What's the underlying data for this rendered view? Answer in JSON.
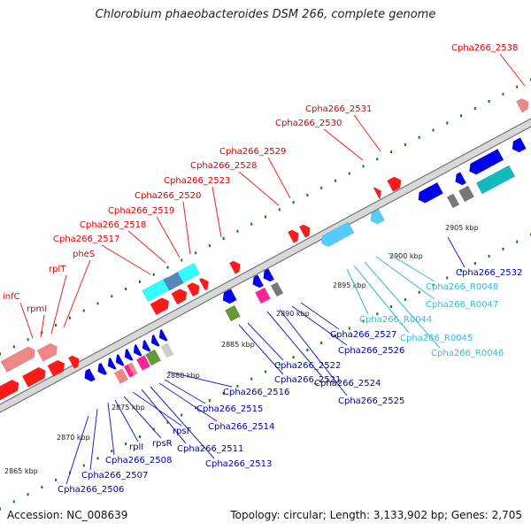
{
  "title": "Chlorobium phaeobacteroides DSM 266, complete genome",
  "footer": {
    "accession": "Accession: NC_008639",
    "summary": "Topology: circular; Length: 3,133,902 bp; Genes: 2,705"
  },
  "colors": {
    "top_strand_label": "#dd0000",
    "bottom_strand_label": "#0000aa",
    "rna_label": "#33bbdd",
    "backbone": "#888888",
    "tick_mark": "#117711"
  },
  "scale_ticks": [
    {
      "label": "2865 kbp"
    },
    {
      "label": "2870 kbp"
    },
    {
      "label": "2875 kbp"
    },
    {
      "label": "2880 kbp"
    },
    {
      "label": "2885 kbp"
    },
    {
      "label": "2890 kbp"
    },
    {
      "label": "2895 kbp"
    },
    {
      "label": "2900 kbp"
    },
    {
      "label": "2905 kbp"
    }
  ],
  "top_labels": [
    {
      "text": "infC"
    },
    {
      "text": "rpmI"
    },
    {
      "text": "rplT"
    },
    {
      "text": "pheS"
    },
    {
      "text": "Cpha266_2517"
    },
    {
      "text": "Cpha266_2518"
    },
    {
      "text": "Cpha266_2519"
    },
    {
      "text": "Cpha266_2520"
    },
    {
      "text": "Cpha266_2523"
    },
    {
      "text": "Cpha266_2528"
    },
    {
      "text": "Cpha266_2529"
    },
    {
      "text": "Cpha266_2530"
    },
    {
      "text": "Cpha266_2531"
    },
    {
      "text": "Cpha266_2538"
    }
  ],
  "bottom_labels": [
    {
      "text": "Cpha266_2506"
    },
    {
      "text": "Cpha266_2507"
    },
    {
      "text": "Cpha266_2508"
    },
    {
      "text": "rplI"
    },
    {
      "text": "rpsR"
    },
    {
      "text": "rpsF"
    },
    {
      "text": "Cpha266_2511"
    },
    {
      "text": "Cpha266_2513"
    },
    {
      "text": "Cpha266_2514"
    },
    {
      "text": "Cpha266_2515"
    },
    {
      "text": "Cpha266_2516"
    },
    {
      "text": "Cpha266_2521"
    },
    {
      "text": "Cpha266_2522"
    },
    {
      "text": "Cpha266_2524"
    },
    {
      "text": "Cpha266_2525"
    },
    {
      "text": "Cpha266_2526"
    },
    {
      "text": "Cpha266_2527"
    },
    {
      "text": "Cpha266_2532"
    }
  ],
  "rna_labels": [
    {
      "text": "Cpha266_R0044"
    },
    {
      "text": "Cpha266_R0045"
    },
    {
      "text": "Cpha266_R0046"
    },
    {
      "text": "Cpha266_R0047"
    },
    {
      "text": "Cpha266_R0048"
    }
  ]
}
